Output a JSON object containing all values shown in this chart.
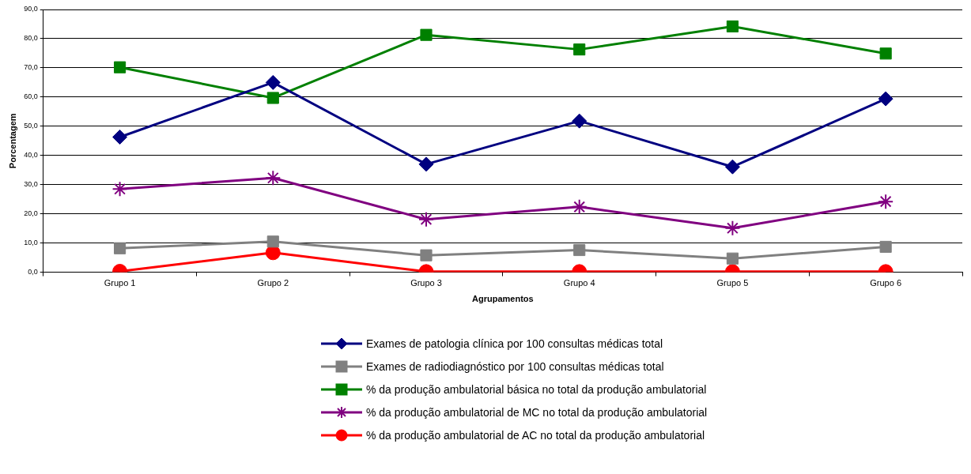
{
  "chart_data": {
    "type": "line",
    "xlabel": "Agrupamentos",
    "ylabel": "Porcentagem",
    "categories": [
      "Grupo 1",
      "Grupo 2",
      "Grupo 3",
      "Grupo 4",
      "Grupo 5",
      "Grupo 6"
    ],
    "series": [
      {
        "name": "Exames de patologia clínica por 100 consultas médicas total",
        "color": "#000080",
        "marker": "diamond",
        "values": [
          46.3,
          65.0,
          37.0,
          51.8,
          36.1,
          59.4
        ]
      },
      {
        "name": "Exames de radiodiagnóstico por 100 consultas médicas total",
        "color": "#808080",
        "marker": "square",
        "values": [
          8.2,
          10.5,
          5.8,
          7.6,
          4.7,
          8.7
        ]
      },
      {
        "name": "% da produção ambulatorial básica no total da produção ambulatorial",
        "color": "#008000",
        "marker": "square",
        "values": [
          70.2,
          59.7,
          81.3,
          76.3,
          84.2,
          74.9
        ]
      },
      {
        "name": "% da produção ambulatorial de MC no total da produção ambulatorial",
        "color": "#800080",
        "marker": "cross",
        "values": [
          28.5,
          32.3,
          18.1,
          22.4,
          15.1,
          24.2
        ]
      },
      {
        "name": "% da produção ambulatorial de AC no total da produção ambulatorial",
        "color": "#ff0000",
        "marker": "circle",
        "values": [
          0.3,
          6.7,
          0.2,
          0.2,
          0.2,
          0.2
        ]
      }
    ],
    "ylim": [
      0,
      90
    ],
    "yticks": [
      {
        "value": 0,
        "label": "0,0"
      },
      {
        "value": 10,
        "label": "10,0"
      },
      {
        "value": 20,
        "label": "20,0"
      },
      {
        "value": 30,
        "label": "30,0"
      },
      {
        "value": 40,
        "label": "40,0"
      },
      {
        "value": 50,
        "label": "50,0"
      },
      {
        "value": 60,
        "label": "60,0"
      },
      {
        "value": 70,
        "label": "70,0"
      },
      {
        "value": 80,
        "label": "80,0"
      },
      {
        "value": 90,
        "label": "90,0"
      }
    ],
    "grid": "y",
    "legend": "bottom",
    "line_style": "solid"
  }
}
